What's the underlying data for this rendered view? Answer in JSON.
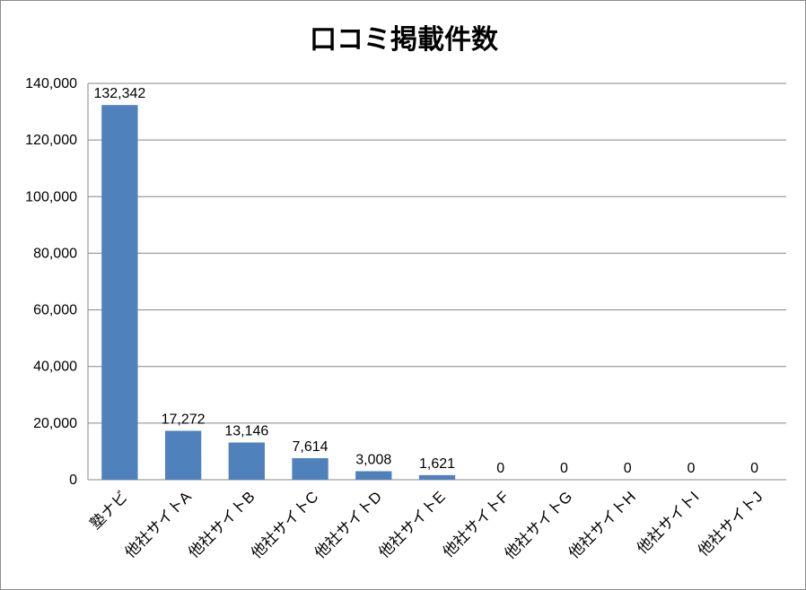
{
  "chart_data": {
    "type": "bar",
    "title": "口コミ掲載件数",
    "xlabel": "",
    "ylabel": "",
    "categories": [
      "塾ナビ",
      "他社サイトA",
      "他社サイトB",
      "他社サイトC",
      "他社サイトD",
      "他社サイトE",
      "他社サイトF",
      "他社サイトG",
      "他社サイトH",
      "他社サイトI",
      "他社サイトJ"
    ],
    "values": [
      132342,
      17272,
      13146,
      7614,
      3008,
      1621,
      0,
      0,
      0,
      0,
      0
    ],
    "data_labels": [
      "132,342",
      "17,272",
      "13,146",
      "7,614",
      "3,008",
      "1,621",
      "0",
      "0",
      "0",
      "0",
      "0"
    ],
    "ylim": [
      0,
      140000
    ],
    "yticks": [
      0,
      20000,
      40000,
      60000,
      80000,
      100000,
      120000,
      140000
    ],
    "ytick_labels": [
      "0",
      "20,000",
      "40,000",
      "60,000",
      "80,000",
      "100,000",
      "120,000",
      "140,000"
    ],
    "grid": true,
    "legend": "none",
    "bar_color": "#4f81bd",
    "gridline_color": "#868686"
  }
}
